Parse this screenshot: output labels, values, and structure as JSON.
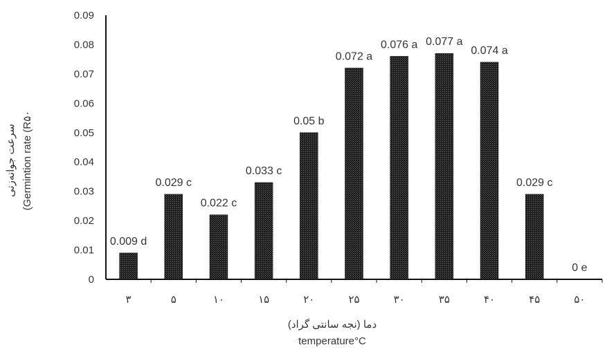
{
  "chart_data": {
    "type": "bar",
    "categories": [
      "۳",
      "۵",
      "۱۰",
      "۱۵",
      "۲۰",
      "۲۵",
      "۳۰",
      "۳۵",
      "۴۰",
      "۴۵",
      "۵۰"
    ],
    "values": [
      0.009,
      0.029,
      0.022,
      0.033,
      0.05,
      0.072,
      0.076,
      0.077,
      0.074,
      0.029,
      0
    ],
    "data_labels": [
      "0.009 d",
      "0.029 c",
      "0.022 c",
      "0.033 c",
      "0.05 b",
      "0.072 a",
      "0.076 a",
      "0.077 a",
      "0.074 a",
      "0.029 c",
      "0 e"
    ],
    "ylim": [
      0,
      0.09
    ],
    "yticks": [
      "0",
      "0.01",
      "0.02",
      "0.03",
      "0.04",
      "0.05",
      "0.06",
      "0.07",
      "0.08",
      "0.09"
    ],
    "xlabel_line1": "دما (نجه سانتی گراد)",
    "xlabel_line2": "temperature°C",
    "ylabel_line1": "سرعت جوانه‌زنی",
    "ylabel_line2": "(Germintion  rate  (R۵۰",
    "grid": false,
    "bar_fill": "crosshatch-dark",
    "colors": {
      "bar_dark": "#1a1a1a",
      "bar_light": "#6e6e6e",
      "axis": "#111111",
      "text": "#333333"
    }
  }
}
